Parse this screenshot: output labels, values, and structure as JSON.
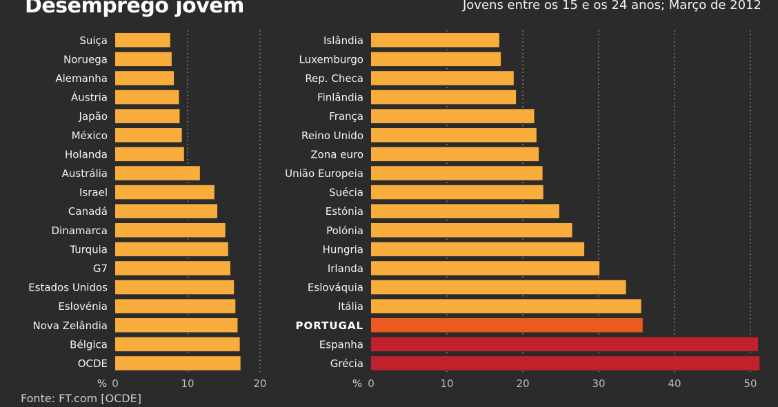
{
  "title": "Desemprego jovem",
  "subtitle": "Jovens entre os 15 e os 24 anos; Março de 2012",
  "source": "Fonte: FT.com [OCDE]",
  "colors": {
    "background": "#2b2b2b",
    "bar_default": "#f8ad3c",
    "bar_portugal": "#ec5a1f",
    "bar_high": "#c0212d",
    "grid": "#cfcfcf"
  },
  "chart_data": [
    {
      "type": "bar",
      "orientation": "horizontal",
      "title": "",
      "unit_label": "%",
      "xlim": [
        0,
        20
      ],
      "xticks": [
        0,
        10,
        20
      ],
      "grid": "dotted vertical lines at 10 and 20",
      "categories": [
        "Suiça",
        "Noruega",
        "Alemanha",
        "Áustria",
        "Japão",
        "México",
        "Holanda",
        "Austrália",
        "Israel",
        "Canadá",
        "Dinamarca",
        "Turquia",
        "G7",
        "Estados Unidos",
        "Eslovénia",
        "Nova Zelândia",
        "Bélgica",
        "OCDE"
      ],
      "values": [
        7.6,
        7.8,
        8.1,
        8.8,
        8.9,
        9.2,
        9.5,
        11.7,
        13.7,
        14.1,
        15.2,
        15.6,
        15.9,
        16.4,
        16.6,
        16.9,
        17.2,
        17.3
      ],
      "highlight": []
    },
    {
      "type": "bar",
      "orientation": "horizontal",
      "title": "",
      "unit_label": "%",
      "xlim": [
        0,
        50
      ],
      "xticks": [
        0,
        10,
        20,
        30,
        40,
        50
      ],
      "grid": "dotted vertical lines every 10",
      "categories": [
        "Islândia",
        "Luxemburgo",
        "Rep. Checa",
        "Finlândia",
        "França",
        "Reino Unido",
        "Zona euro",
        "União Europeia",
        "Suécia",
        "Estónia",
        "Polónia",
        "Hungria",
        "Irlanda",
        "Eslováquia",
        "Itália",
        "PORTUGAL",
        "Espanha",
        "Grécia"
      ],
      "values": [
        16.9,
        17.1,
        18.8,
        19.1,
        21.5,
        21.8,
        22.1,
        22.6,
        22.7,
        24.8,
        26.5,
        28.1,
        30.1,
        33.6,
        35.6,
        35.8,
        51.0,
        51.2
      ],
      "highlight": [
        "PORTUGAL",
        "Espanha",
        "Grécia"
      ]
    }
  ]
}
